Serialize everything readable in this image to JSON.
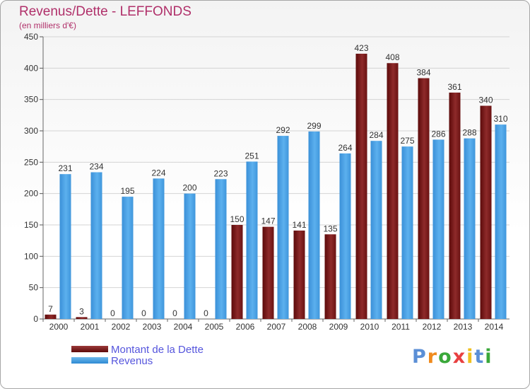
{
  "chart_data": {
    "type": "bar",
    "title": "Revenus/Dette - LEFFONDS",
    "subtitle": "(en milliers d'€)",
    "categories": [
      "2000",
      "2001",
      "2002",
      "2003",
      "2004",
      "2005",
      "2006",
      "2007",
      "2008",
      "2009",
      "2010",
      "2011",
      "2012",
      "2013",
      "2014"
    ],
    "series": [
      {
        "name": "Montant de la Dette",
        "color": "#7a1b1b",
        "values": [
          7,
          3,
          0,
          0,
          0,
          0,
          150,
          147,
          141,
          135,
          423,
          408,
          384,
          361,
          340
        ]
      },
      {
        "name": "Revenus",
        "color": "#4aa3e6",
        "values": [
          231,
          234,
          195,
          224,
          200,
          223,
          251,
          292,
          299,
          264,
          284,
          275,
          286,
          288,
          310
        ]
      }
    ],
    "ylim": [
      0,
      450
    ],
    "yticks": [
      0,
      50,
      100,
      150,
      200,
      250,
      300,
      350,
      400,
      450
    ],
    "grid": true,
    "legend": "bottom-left"
  },
  "logo": {
    "text": "Proxiti",
    "letter_colors": [
      "#5b8fd6",
      "#f08a1c",
      "#3aa83a",
      "#e84040",
      "#f0c020",
      "#5b8fd6",
      "#3aa83a"
    ]
  }
}
